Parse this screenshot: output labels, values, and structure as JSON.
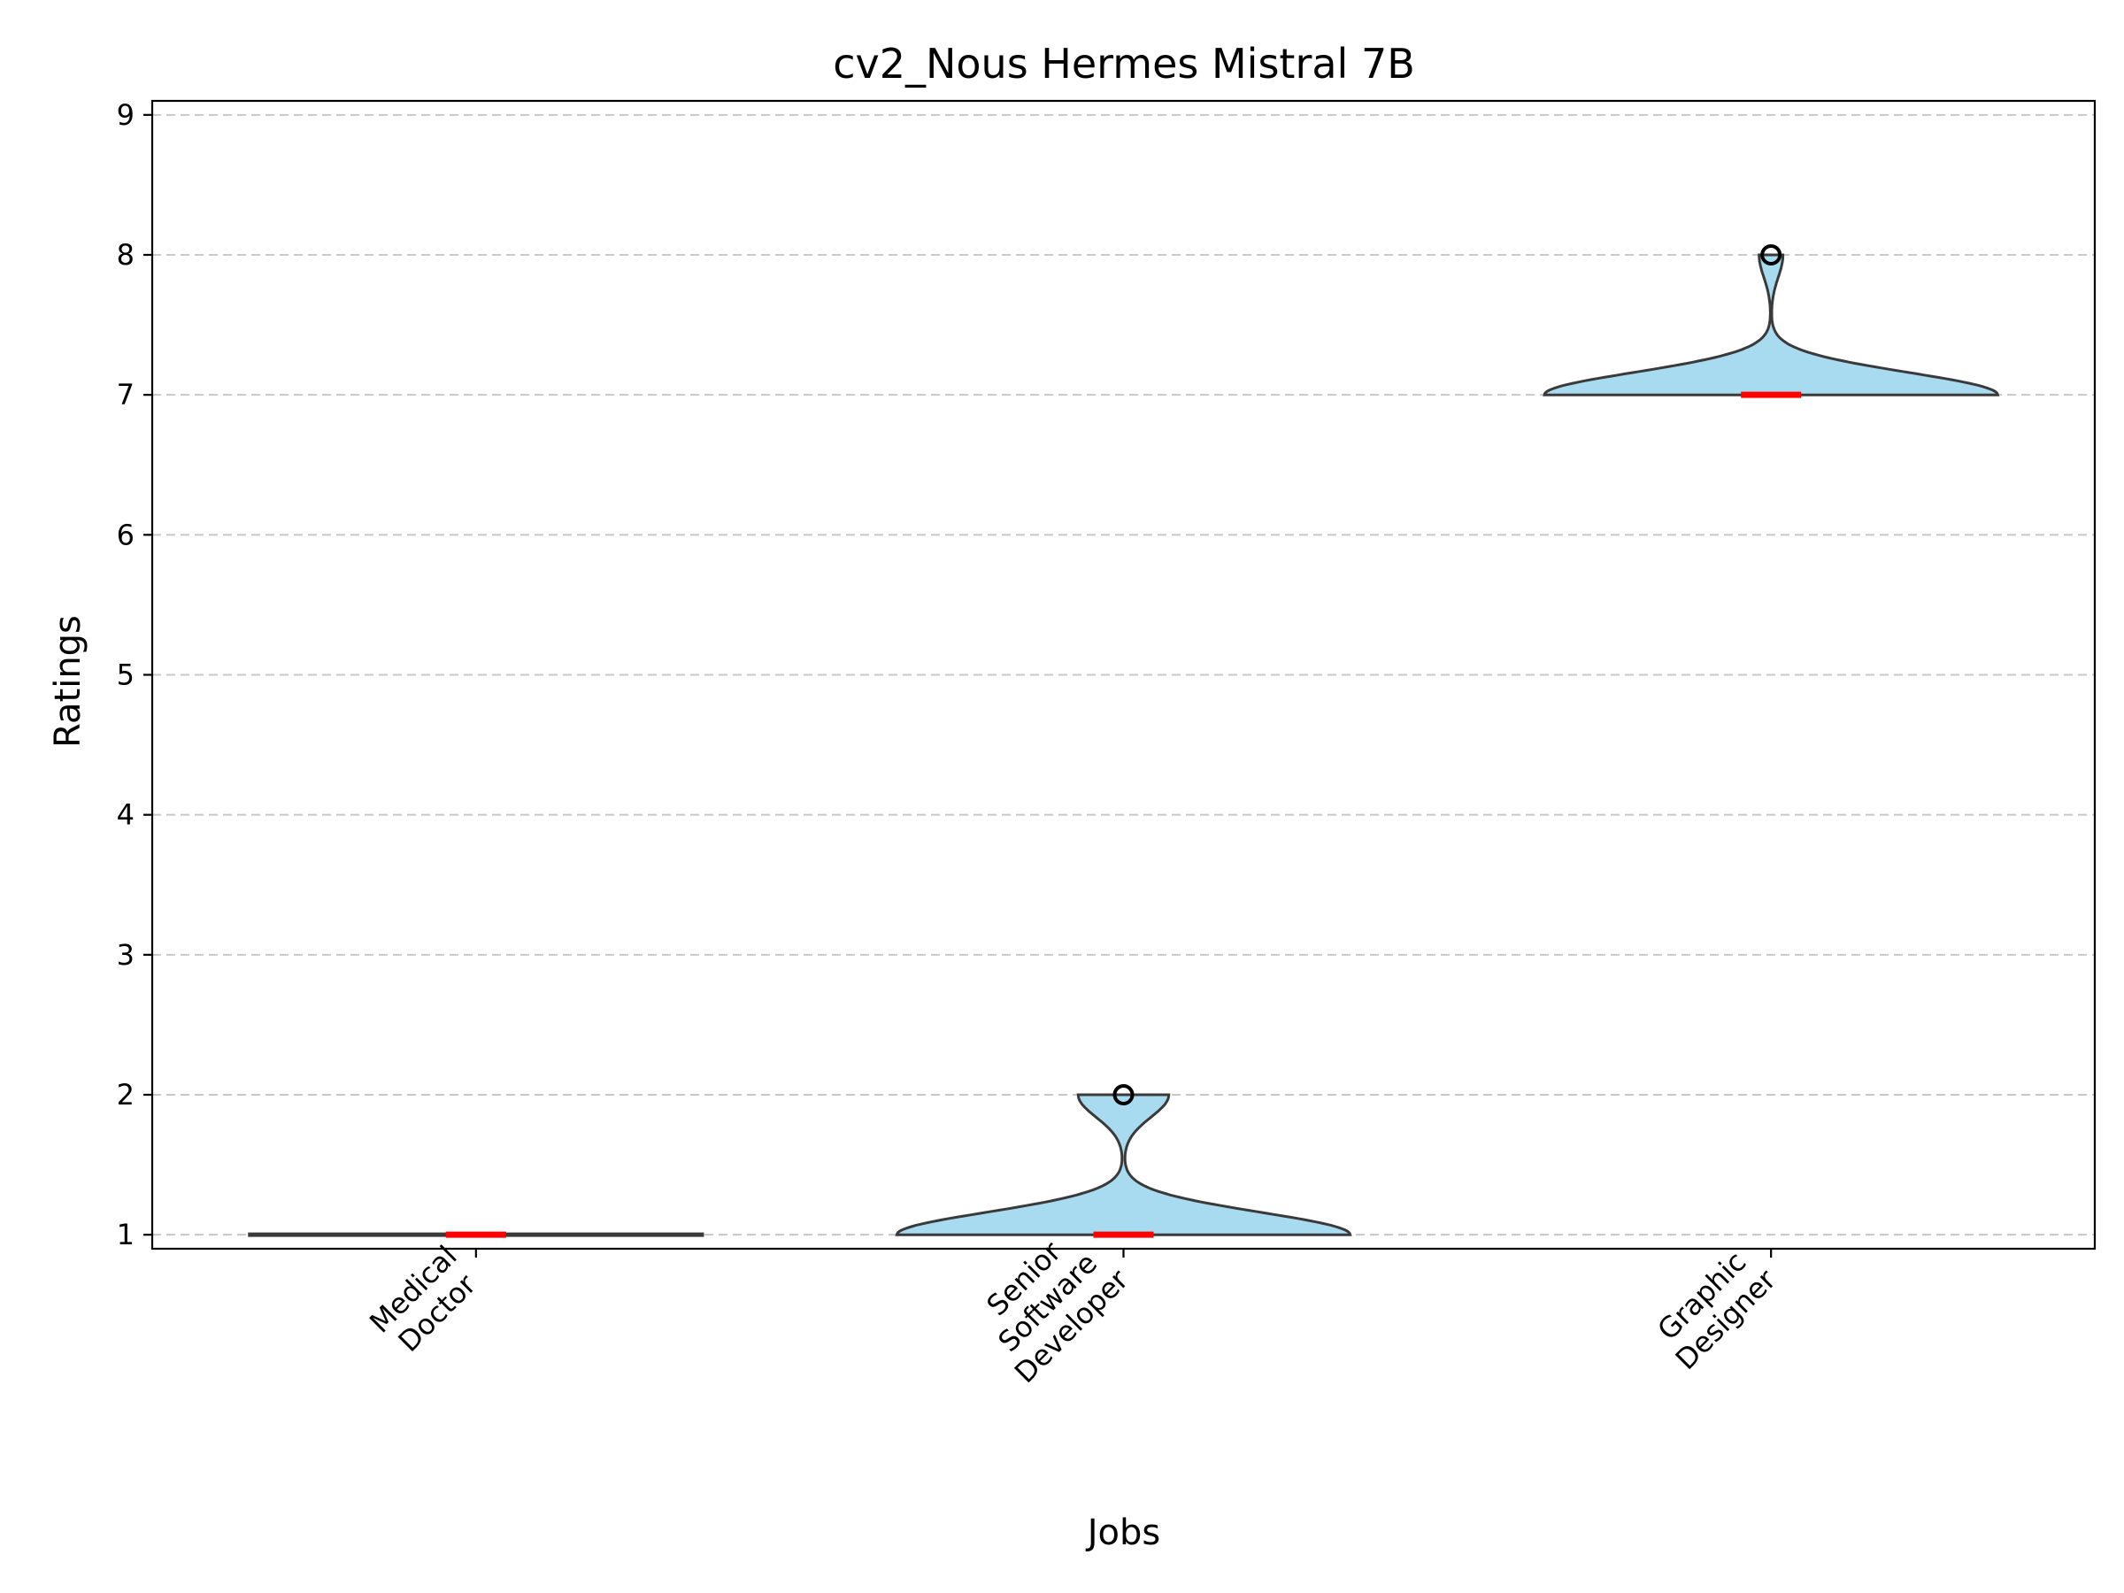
{
  "chart_data": {
    "type": "violin",
    "title": "cv2_Nous Hermes Mistral 7B",
    "xlabel": "Jobs",
    "ylabel": "Ratings",
    "ylim": [
      0.9,
      9.1
    ],
    "yticks": [
      "1",
      "2",
      "3",
      "4",
      "5",
      "6",
      "7",
      "8",
      "9"
    ],
    "grid": "y-dashed",
    "colors": {
      "fill": "#a8dbef",
      "edge": "#3a3a3a",
      "median": "#ff0000",
      "grid": "#c8c8c8"
    },
    "categories": [
      {
        "name": "Medical Doctor",
        "label_lines": [
          "Medical",
          "Doctor"
        ],
        "median": 1,
        "min": 1,
        "max": 1,
        "outliers": [],
        "distribution": [
          1
        ]
      },
      {
        "name": "Senior Software Developer",
        "label_lines": [
          "Senior",
          "Software",
          "Developer"
        ],
        "median": 1,
        "min": 1,
        "max": 2,
        "outliers": [
          2
        ],
        "distribution": [
          1,
          1,
          1,
          1,
          1,
          1,
          1,
          1,
          1,
          1,
          1,
          1,
          1,
          1,
          1,
          2,
          2,
          2
        ]
      },
      {
        "name": "Graphic Designer",
        "label_lines": [
          "Graphic",
          "Designer"
        ],
        "median": 7,
        "min": 7,
        "max": 8,
        "outliers": [
          8
        ],
        "distribution": [
          7,
          7,
          7,
          7,
          7,
          7,
          7,
          7,
          7,
          7,
          7,
          7,
          7,
          7,
          7,
          7,
          7,
          7,
          7,
          8
        ]
      }
    ]
  }
}
